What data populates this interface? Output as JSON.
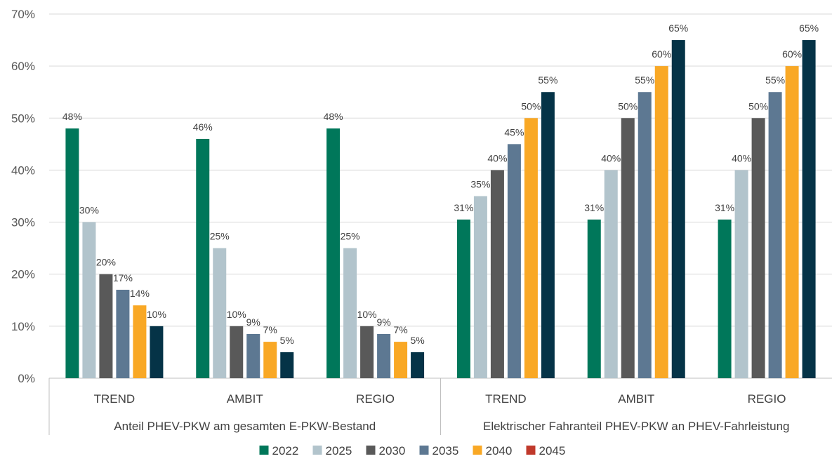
{
  "chart_data": {
    "type": "bar",
    "title": "",
    "xlabel": "",
    "ylabel": "",
    "ylim": [
      0,
      70
    ],
    "y_ticks": [
      "0%",
      "10%",
      "20%",
      "30%",
      "40%",
      "50%",
      "60%",
      "70%"
    ],
    "y_tick_values": [
      0,
      10,
      20,
      30,
      40,
      50,
      60,
      70
    ],
    "value_suffix": "%",
    "grid": true,
    "legend_position": "bottom",
    "groups": [
      {
        "label": "Anteil PHEV-PKW am gesamten E-PKW-Bestand",
        "categories": [
          "TREND",
          "AMBIT",
          "REGIO"
        ]
      },
      {
        "label": "Elektrischer Fahranteil PHEV-PKW an PHEV-Fahrleistung",
        "categories": [
          "TREND",
          "AMBIT",
          "REGIO"
        ]
      }
    ],
    "categories": [
      "TREND",
      "AMBIT",
      "REGIO",
      "TREND",
      "AMBIT",
      "REGIO"
    ],
    "series": [
      {
        "name": "2022",
        "color": "#00775a",
        "values": [
          48,
          46,
          48,
          30.5,
          30.5,
          30.5
        ],
        "labels": [
          "48%",
          "46%",
          "48%",
          "31%",
          "31%",
          "31%"
        ]
      },
      {
        "name": "2025",
        "color": "#b2c4cc",
        "values": [
          30,
          25,
          25,
          35,
          40,
          40
        ],
        "labels": [
          "30%",
          "25%",
          "25%",
          "35%",
          "40%",
          "40%"
        ]
      },
      {
        "name": "2030",
        "color": "#595959",
        "values": [
          20,
          10,
          10,
          40,
          50,
          50
        ],
        "labels": [
          "20%",
          "10%",
          "10%",
          "40%",
          "50%",
          "50%"
        ]
      },
      {
        "name": "2035",
        "color": "#5d7892",
        "values": [
          17,
          8.5,
          8.5,
          45,
          55,
          55
        ],
        "labels": [
          "17%",
          "9%",
          "9%",
          "45%",
          "55%",
          "55%"
        ]
      },
      {
        "name": "2040",
        "color": "#f9a825",
        "values": [
          14,
          7,
          7,
          50,
          60,
          60
        ],
        "labels": [
          "14%",
          "7%",
          "7%",
          "50%",
          "60%",
          "60%"
        ]
      },
      {
        "name": "2045",
        "color": "#c0392b",
        "values": [
          null,
          null,
          null,
          null,
          null,
          null
        ],
        "labels": [
          "",
          "",
          "",
          "",
          "",
          ""
        ]
      },
      {
        "name": "",
        "color": "#053347",
        "values": [
          10,
          5,
          5,
          55,
          65,
          65
        ],
        "labels": [
          "10%",
          "5%",
          "5%",
          "55%",
          "65%",
          "65%"
        ]
      }
    ]
  }
}
